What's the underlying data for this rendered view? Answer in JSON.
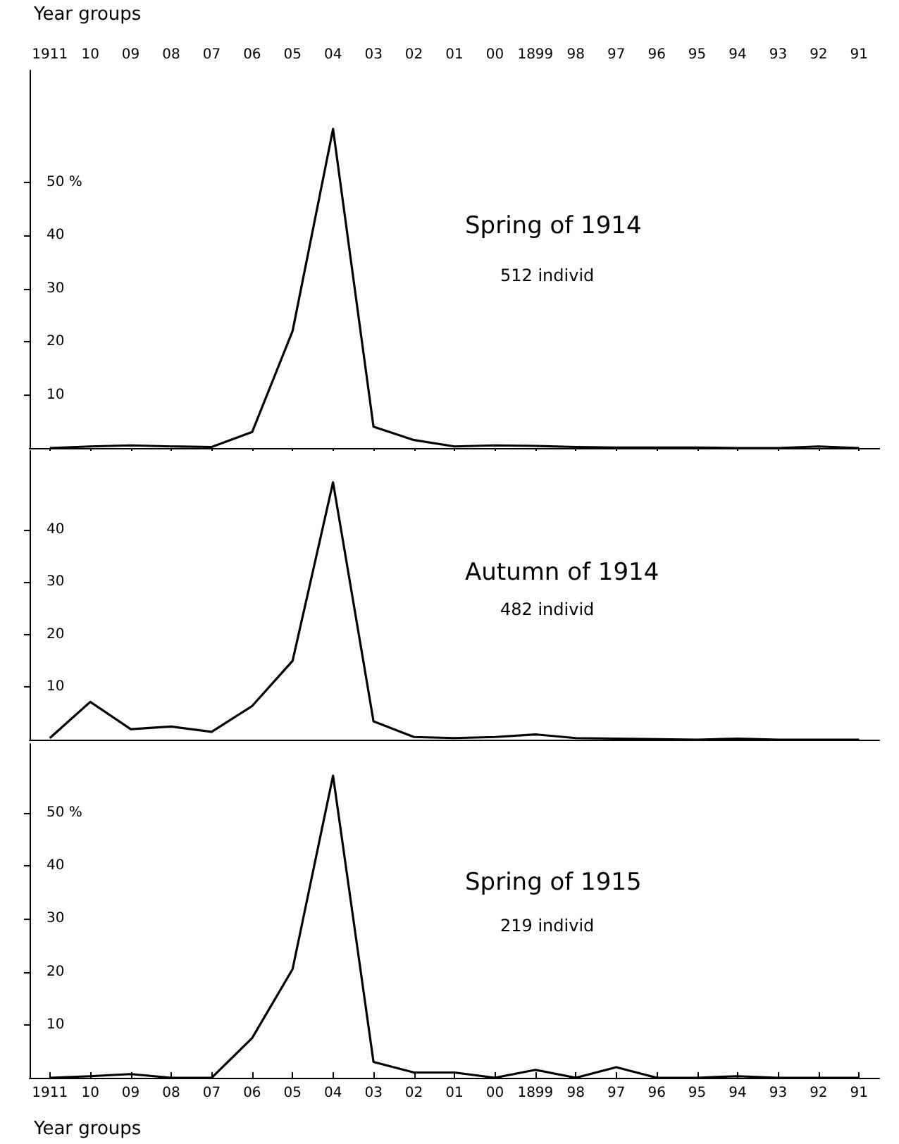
{
  "chart_data": [
    {
      "type": "line",
      "xlabel": "Year groups",
      "categories": [
        "1911",
        "10",
        "09",
        "08",
        "07",
        "06",
        "05",
        "04",
        "03",
        "02",
        "01",
        "00",
        "1899",
        "98",
        "97",
        "96",
        "95",
        "94",
        "93",
        "92",
        "91"
      ],
      "values": [
        0,
        0.3,
        0.5,
        0.3,
        0.2,
        3,
        22,
        60,
        4,
        1.5,
        0.3,
        0.5,
        0.4,
        0.2,
        0.1,
        0.1,
        0.1,
        0,
        0,
        0.3,
        0
      ],
      "color": "#000000",
      "marker": "none",
      "ylim": [
        0,
        71
      ],
      "yticks": [
        10,
        20,
        30,
        40,
        {
          "value": 50,
          "label": "50 %"
        }
      ],
      "annotations": [
        "Spring of 1914",
        "512 individ"
      ]
    },
    {
      "type": "line",
      "categories": [
        "1911",
        "10",
        "09",
        "08",
        "07",
        "06",
        "05",
        "04",
        "03",
        "02",
        "01",
        "00",
        "1899",
        "98",
        "97",
        "96",
        "95",
        "94",
        "93",
        "92",
        "91"
      ],
      "values": [
        0.3,
        7.2,
        2,
        2.5,
        1.5,
        6.4,
        15,
        49,
        3.5,
        0.5,
        0.3,
        0.5,
        1,
        0.3,
        0.2,
        0.1,
        0,
        0.2,
        0,
        0,
        0
      ],
      "color": "#000000",
      "marker": "none",
      "ylim": [
        0,
        55
      ],
      "yticks": [
        10,
        20,
        30,
        40
      ],
      "tick_labels": "y",
      "annotations": [
        "Autumn of 1914",
        "482 individ"
      ]
    },
    {
      "type": "line",
      "xlabel": "Year groups",
      "categories": [
        "1911",
        "10",
        "09",
        "08",
        "07",
        "06",
        "05",
        "04",
        "03",
        "02",
        "01",
        "00",
        "1899",
        "98",
        "97",
        "96",
        "95",
        "94",
        "93",
        "92",
        "91"
      ],
      "values": [
        0,
        0.3,
        0.7,
        0,
        0,
        7.5,
        20.5,
        57,
        3,
        1,
        1,
        0,
        1.5,
        0,
        2,
        0,
        0,
        0.3,
        0,
        0,
        0
      ],
      "color": "#000000",
      "marker": "none",
      "ylim": [
        0,
        63
      ],
      "yticks": [
        10,
        20,
        30,
        40,
        {
          "value": 50,
          "label": "50 %"
        }
      ],
      "annotations": [
        "Spring of 1915",
        "219 individ"
      ]
    }
  ]
}
